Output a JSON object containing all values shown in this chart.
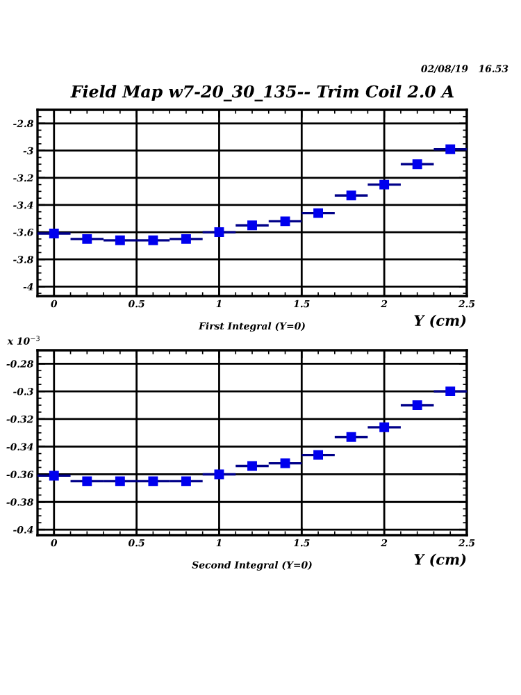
{
  "chart_data": [
    {
      "type": "scatter",
      "title": "Field Map w7-20_30_135-- Trim Coil 2.0 A",
      "xlabel": "Y (cm)",
      "annotations": [
        "02/08/19   16.53",
        "First Integral (Y=0)"
      ],
      "x": [
        0,
        0.2,
        0.4,
        0.6,
        0.8,
        1.0,
        1.2,
        1.4,
        1.6,
        1.8,
        2.0,
        2.2,
        2.4
      ],
      "series": [
        {
          "color": "#0000ee",
          "values": [
            -3.61,
            -3.65,
            -3.66,
            -3.66,
            -3.65,
            -3.6,
            -3.55,
            -3.52,
            -3.46,
            -3.33,
            -3.25,
            -3.1,
            -2.99
          ],
          "xerrors": [
            0.1,
            0.1,
            0.1,
            0.1,
            0.1,
            0.1,
            0.1,
            0.1,
            0.1,
            0.1,
            0.1,
            0.1,
            0.1
          ]
        }
      ],
      "marker": "square",
      "grid": true,
      "xlim": [
        -0.1,
        2.5
      ],
      "xticks": [
        0,
        0.5,
        1,
        1.5,
        2,
        2.5
      ],
      "ylim": [
        -4.07,
        -2.7
      ],
      "yticks": [
        -4,
        -3.8,
        -3.6,
        -3.4,
        -3.2,
        -3,
        -2.8
      ]
    },
    {
      "type": "scatter",
      "xlabel": "Y (cm)",
      "annotations": [
        "x 10$^{−3}$",
        "Second Integral (Y=0)"
      ],
      "x": [
        0,
        0.2,
        0.4,
        0.6,
        0.8,
        1.0,
        1.2,
        1.4,
        1.6,
        1.8,
        2.0,
        2.2,
        2.4
      ],
      "series": [
        {
          "color": "#0000ee",
          "values": [
            -0.361,
            -0.365,
            -0.365,
            -0.365,
            -0.365,
            -0.36,
            -0.354,
            -0.352,
            -0.346,
            -0.333,
            -0.326,
            -0.31,
            -0.3
          ],
          "xerrors": [
            0.1,
            0.1,
            0.1,
            0.1,
            0.1,
            0.1,
            0.1,
            0.1,
            0.1,
            0.1,
            0.1,
            0.1,
            0.1
          ]
        }
      ],
      "marker": "square",
      "grid": true,
      "xlim": [
        -0.1,
        2.5
      ],
      "xticks": [
        0,
        0.5,
        1,
        1.5,
        2,
        2.5
      ],
      "ylim": [
        -0.404,
        -0.2703
      ],
      "yticks": [
        -0.4,
        -0.38,
        -0.36,
        -0.34,
        -0.32,
        -0.3,
        -0.28
      ]
    }
  ]
}
